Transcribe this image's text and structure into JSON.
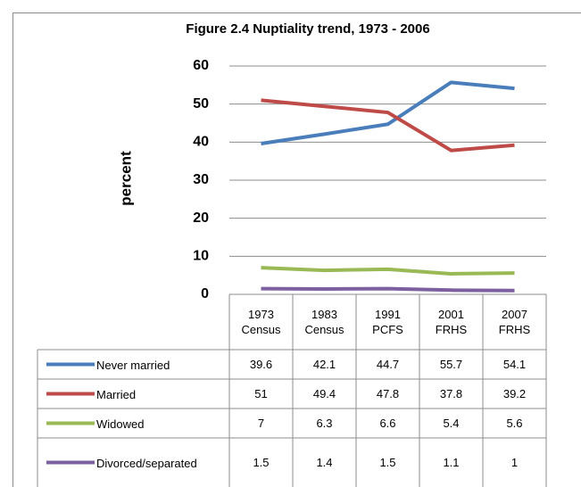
{
  "chart_data": {
    "type": "line",
    "title": "Figure 2.4 Nuptiality trend, 1973 - 2006",
    "ylabel": "percent",
    "categories": [
      "1973 Census",
      "1983 Census",
      "1991 PCFS",
      "2001 FRHS",
      "2007 FRHS"
    ],
    "series": [
      {
        "name": "Never married",
        "color": "#4a7ebb",
        "values": [
          39.6,
          42.1,
          44.7,
          55.7,
          54.1
        ]
      },
      {
        "name": "Married",
        "color": "#be4b48",
        "values": [
          51,
          49.4,
          47.8,
          37.8,
          39.2
        ]
      },
      {
        "name": "Widowed",
        "color": "#98b954",
        "values": [
          7,
          6.3,
          6.6,
          5.4,
          5.6
        ]
      },
      {
        "name": "Divorced/separated",
        "color": "#7d60a0",
        "values": [
          1.5,
          1.4,
          1.5,
          1.1,
          1
        ]
      }
    ],
    "ylim": [
      0,
      60
    ],
    "yticks": [
      0,
      10,
      20,
      30,
      40,
      50,
      60
    ],
    "grid": true
  }
}
